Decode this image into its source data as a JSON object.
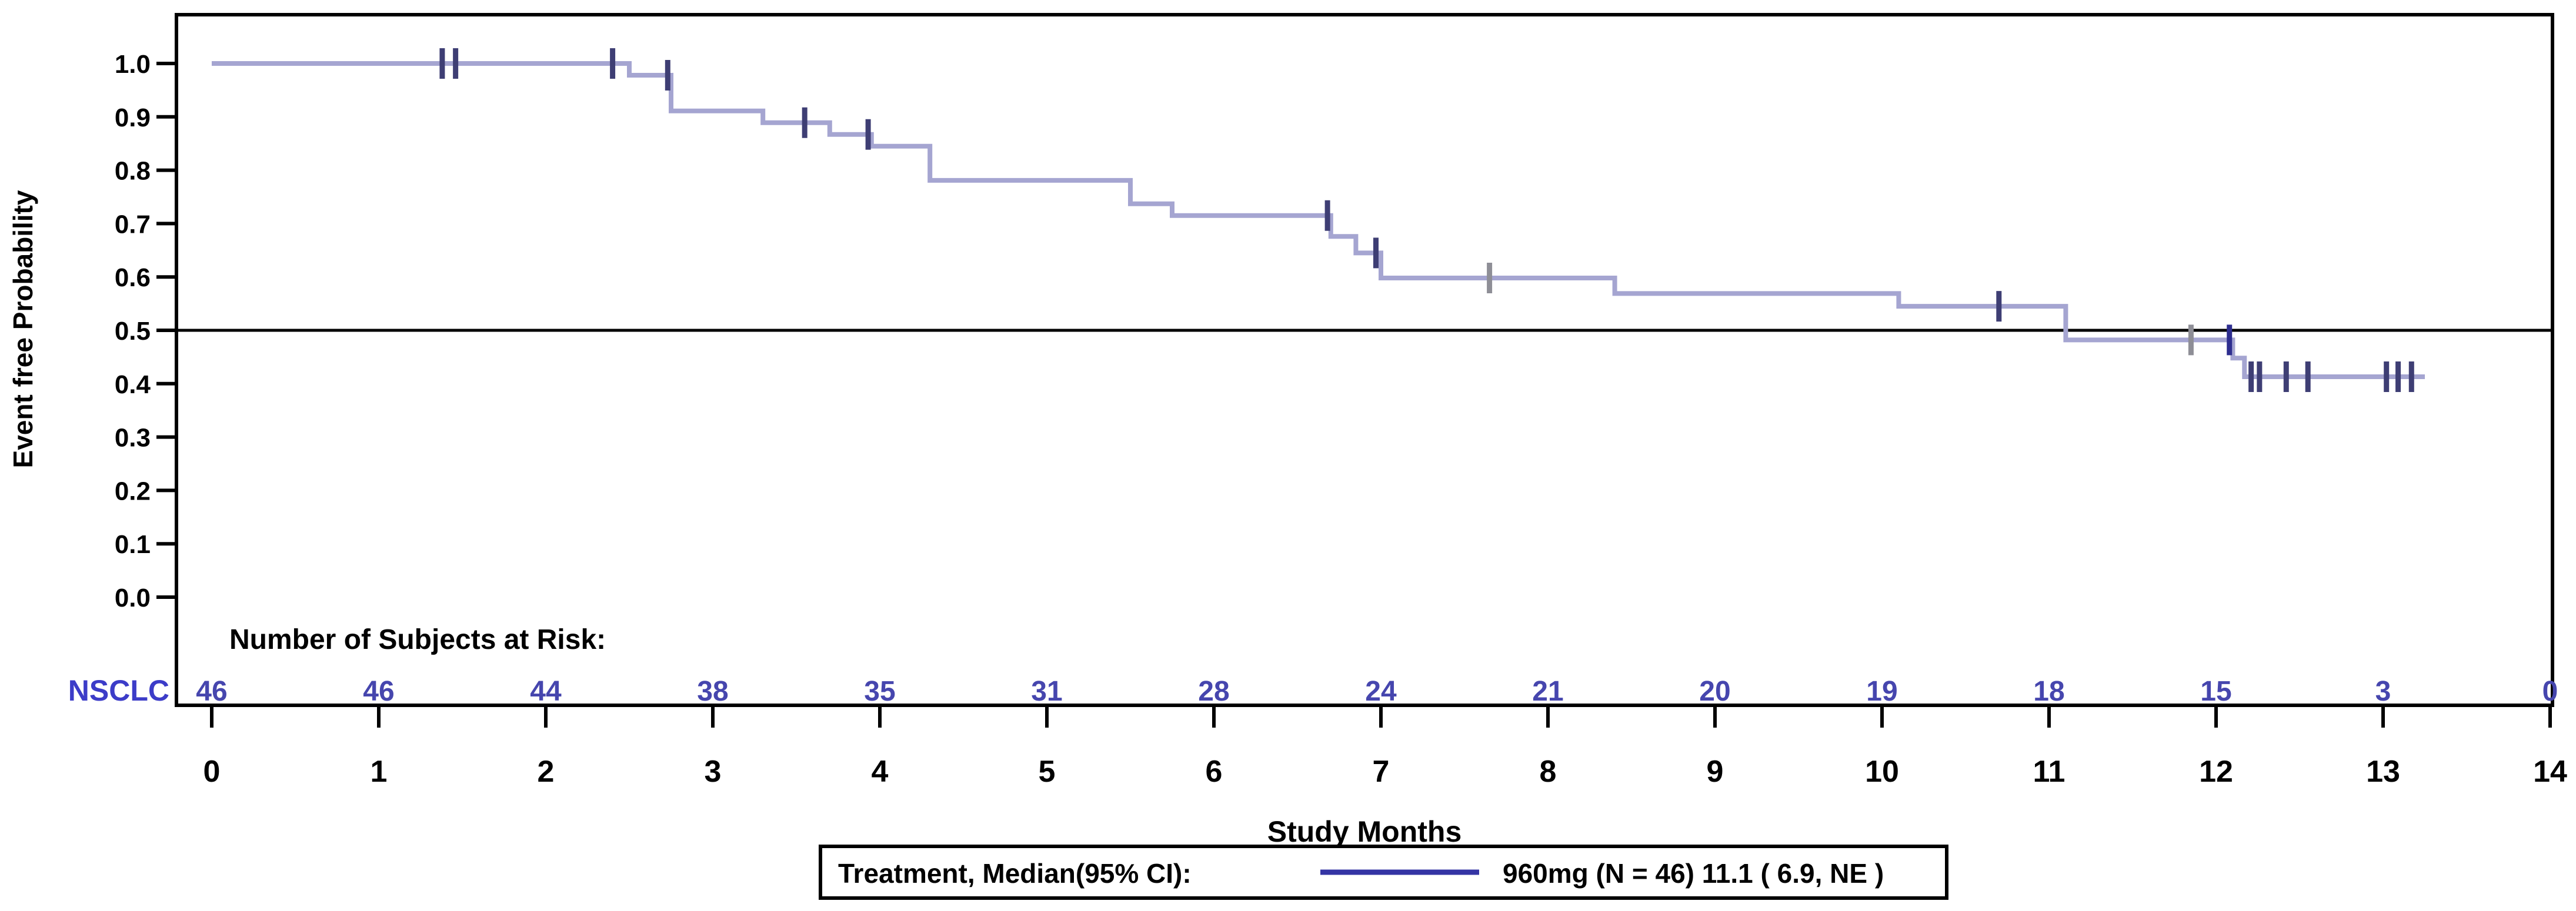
{
  "figure": {
    "background": "#ffffff",
    "frame_color": "#000000"
  },
  "chart_data": {
    "type": "line",
    "subtype": "kaplan-meier-step",
    "title": "",
    "xlabel": "Study Months",
    "ylabel": "Event free Probability",
    "xlim": [
      0,
      14
    ],
    "ylim": [
      0.0,
      1.0
    ],
    "x_ticks": [
      "0",
      "1",
      "2",
      "3",
      "4",
      "5",
      "6",
      "7",
      "8",
      "9",
      "10",
      "11",
      "12",
      "13",
      "14"
    ],
    "y_ticks": [
      "1.0",
      "0.9",
      "0.8",
      "0.7",
      "0.6",
      "0.5",
      "0.4",
      "0.3",
      "0.2",
      "0.1",
      "0.0"
    ],
    "grid": false,
    "reference_line_y": 0.5,
    "legend_position": "bottom-center",
    "series": [
      {
        "name": "960mg (N = 46) 11.1 ( 6.9, NE )",
        "line_color": "#a5a5d1",
        "curve_end_month": 13.25,
        "steps": [
          {
            "t": 0.0,
            "s": 1.0
          },
          {
            "t": 2.5,
            "s": 0.978
          },
          {
            "t": 2.75,
            "s": 0.911
          },
          {
            "t": 3.3,
            "s": 0.889
          },
          {
            "t": 3.7,
            "s": 0.867
          },
          {
            "t": 3.95,
            "s": 0.845
          },
          {
            "t": 4.3,
            "s": 0.781
          },
          {
            "t": 5.5,
            "s": 0.737
          },
          {
            "t": 5.75,
            "s": 0.715
          },
          {
            "t": 6.7,
            "s": 0.676
          },
          {
            "t": 6.85,
            "s": 0.645
          },
          {
            "t": 7.0,
            "s": 0.598
          },
          {
            "t": 8.4,
            "s": 0.569
          },
          {
            "t": 10.1,
            "s": 0.545
          },
          {
            "t": 11.1,
            "s": 0.482
          },
          {
            "t": 12.1,
            "s": 0.448
          },
          {
            "t": 12.17,
            "s": 0.413
          }
        ],
        "censor_marks": [
          {
            "t": 1.38,
            "s": 1.0,
            "color": "#3e3e74"
          },
          {
            "t": 1.46,
            "s": 1.0,
            "color": "#3e3e74"
          },
          {
            "t": 2.4,
            "s": 1.0,
            "color": "#3e3e74"
          },
          {
            "t": 2.73,
            "s": 0.978,
            "color": "#3e3e74"
          },
          {
            "t": 3.55,
            "s": 0.889,
            "color": "#3e3e74"
          },
          {
            "t": 3.93,
            "s": 0.867,
            "color": "#3e3e74"
          },
          {
            "t": 6.68,
            "s": 0.715,
            "color": "#3e3e74"
          },
          {
            "t": 6.97,
            "s": 0.645,
            "color": "#3e3e74"
          },
          {
            "t": 7.65,
            "s": 0.598,
            "color": "#8e8e96"
          },
          {
            "t": 10.7,
            "s": 0.545,
            "color": "#3e3e74"
          },
          {
            "t": 11.85,
            "s": 0.482,
            "color": "#8e8e96"
          },
          {
            "t": 12.08,
            "s": 0.482,
            "color": "#2e2e8f"
          },
          {
            "t": 12.21,
            "s": 0.413,
            "color": "#3e3e74"
          },
          {
            "t": 12.26,
            "s": 0.413,
            "color": "#3e3e74"
          },
          {
            "t": 12.42,
            "s": 0.413,
            "color": "#3e3e74"
          },
          {
            "t": 12.55,
            "s": 0.413,
            "color": "#3e3e74"
          },
          {
            "t": 13.02,
            "s": 0.413,
            "color": "#3e3e74"
          },
          {
            "t": 13.09,
            "s": 0.413,
            "color": "#3e3e74"
          },
          {
            "t": 13.17,
            "s": 0.413,
            "color": "#3e3e74"
          }
        ]
      }
    ],
    "at_risk": {
      "header": "Number of Subjects at Risk:",
      "row_label": "NSCLC",
      "row_label_color": "#3c3cc8",
      "value_color": "#4646ae",
      "values": [
        "46",
        "46",
        "44",
        "38",
        "35",
        "31",
        "28",
        "24",
        "21",
        "20",
        "19",
        "18",
        "15",
        "3",
        "0"
      ]
    }
  },
  "legend": {
    "title": "Treatment, Median(95% CI):",
    "entry_label": "960mg (N = 46) 11.1 ( 6.9, NE )",
    "sample_line_color": "#3434a4",
    "border_color": "#000000"
  },
  "colors": {
    "axis_text": "#000000",
    "curve": "#a5a5d1",
    "censor_default": "#3e3e74",
    "censor_gray": "#8e8e96",
    "reference_line": "#000000"
  }
}
